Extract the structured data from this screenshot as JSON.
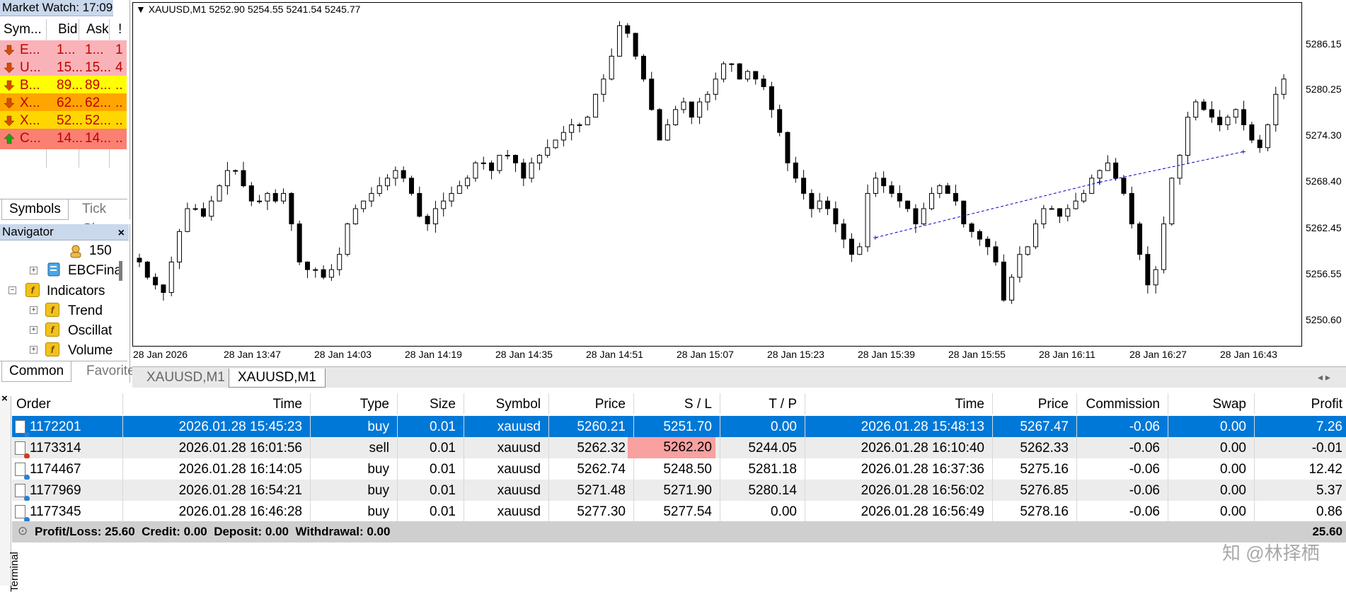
{
  "market_watch": {
    "title": "Market Watch: 17:09",
    "columns": [
      "Sym...",
      "Bid",
      "Ask",
      "!"
    ],
    "rows": [
      {
        "symbol": "E...",
        "bid": "1...",
        "ask": "1...",
        "spread": "1",
        "direction": "down",
        "bg": "#f9b3b8"
      },
      {
        "symbol": "U...",
        "bid": "15...",
        "ask": "15...",
        "spread": "4",
        "direction": "down",
        "bg": "#f9b3b8"
      },
      {
        "symbol": "B...",
        "bid": "89...",
        "ask": "89...",
        "spread": "..",
        "direction": "down",
        "bg": "#ffff00"
      },
      {
        "symbol": "X...",
        "bid": "62...",
        "ask": "62...",
        "spread": "..",
        "direction": "down",
        "bg": "#ffa500"
      },
      {
        "symbol": "X...",
        "bid": "52...",
        "ask": "52...",
        "spread": "..",
        "direction": "down",
        "bg": "#ffd700"
      },
      {
        "symbol": "C...",
        "bid": "14...",
        "ask": "14...",
        "spread": "..",
        "direction": "up",
        "bg": "#fa8072"
      }
    ],
    "tabs": [
      "Symbols",
      "Tick Cha"
    ]
  },
  "navigator": {
    "title": "Navigator",
    "items": [
      {
        "label": "150",
        "icon": "account-icon"
      },
      {
        "label": "EBCFina",
        "icon": "server-icon"
      },
      {
        "label": "Indicators",
        "icon": "indicator-icon"
      },
      {
        "label": "Trend",
        "icon": "indicator-icon"
      },
      {
        "label": "Oscillat",
        "icon": "indicator-icon"
      },
      {
        "label": "Volume",
        "icon": "indicator-icon"
      }
    ],
    "tabs": [
      "Common",
      "Favorite"
    ]
  },
  "chart": {
    "info": "XAUUSD,M1  5252.90 5254.55 5241.54 5245.77",
    "y_ticks": [
      "5286.15",
      "5280.25",
      "5274.30",
      "5268.40",
      "5262.45",
      "5256.55",
      "5250.60"
    ],
    "x_ticks": [
      "28 Jan 2026",
      "28 Jan 13:47",
      "28 Jan 14:03",
      "28 Jan 14:19",
      "28 Jan 14:35",
      "28 Jan 14:51",
      "28 Jan 15:07",
      "28 Jan 15:23",
      "28 Jan 15:39",
      "28 Jan 15:55",
      "28 Jan 16:11",
      "28 Jan 16:27",
      "28 Jan 16:43"
    ],
    "tabs": [
      "XAUUSD,M1",
      "XAUUSD,M1"
    ]
  },
  "chart_data": {
    "type": "candlestick",
    "title": "XAUUSD,M1",
    "ylim": [
      5246,
      5291
    ],
    "close_series": [
      5257,
      5255,
      5254,
      5253,
      5257,
      5261,
      5264,
      5264,
      5263,
      5265,
      5267,
      5269,
      5269,
      5267,
      5265,
      5265,
      5266,
      5265,
      5266,
      5262,
      5257,
      5256,
      5256,
      5255,
      5256,
      5258,
      5262,
      5264,
      5265,
      5266,
      5267,
      5268,
      5269,
      5268,
      5266,
      5263,
      5262,
      5264,
      5265,
      5266,
      5267,
      5268,
      5270,
      5270,
      5269,
      5271,
      5271,
      5270,
      5268,
      5270,
      5271,
      5272,
      5273,
      5274,
      5275,
      5275,
      5276,
      5279,
      5281,
      5284,
      5288,
      5287,
      5284,
      5281,
      5277,
      5273,
      5275,
      5277,
      5278,
      5276,
      5278,
      5279,
      5281,
      5283,
      5283,
      5281,
      5282,
      5281,
      5280,
      5277,
      5274,
      5270,
      5268,
      5266,
      5264,
      5265,
      5264,
      5262,
      5260,
      5258,
      5259,
      5266,
      5268,
      5267,
      5266,
      5265,
      5264,
      5262,
      5264,
      5266,
      5267,
      5266,
      5265,
      5262,
      5261,
      5260,
      5259,
      5257,
      5252,
      5255,
      5258,
      5259,
      5262,
      5264,
      5264,
      5263,
      5264,
      5265,
      5266,
      5268,
      5269,
      5270,
      5268,
      5266,
      5262,
      5258,
      5254,
      5256,
      5262,
      5268,
      5271,
      5276,
      5278,
      5277,
      5276,
      5275,
      5276,
      5277,
      5275,
      5273,
      5272,
      5275,
      5279,
      5281
    ],
    "markers": [
      {
        "x_index": 92,
        "y": 5260.21,
        "kind": "entry"
      },
      {
        "x_index": 120,
        "y": 5267.47,
        "kind": "exit"
      },
      {
        "x_index": 138,
        "y": 5271.48,
        "kind": "entry"
      }
    ]
  },
  "terminal": {
    "side_label": "Terminal",
    "columns": [
      "Order",
      "Time",
      "Type",
      "Size",
      "Symbol",
      "Price",
      "S / L",
      "T / P",
      "Time",
      "Price",
      "Commission",
      "Swap",
      "Profit"
    ],
    "rows": [
      {
        "order": "1172201",
        "time": "2026.01.28 15:45:23",
        "type": "buy",
        "size": "0.01",
        "symbol": "xauusd",
        "price": "5260.21",
        "sl": "5251.70",
        "tp": "0.00",
        "time2": "2026.01.28 15:48:13",
        "price2": "5267.47",
        "commission": "-0.06",
        "swap": "0.00",
        "profit": "7.26",
        "status": "selected"
      },
      {
        "order": "1173314",
        "time": "2026.01.28 16:01:56",
        "type": "sell",
        "size": "0.01",
        "symbol": "xauusd",
        "price": "5262.32",
        "sl": "5262.20",
        "tp": "5244.05",
        "time2": "2026.01.28 16:10:40",
        "price2": "5262.33",
        "commission": "-0.06",
        "swap": "0.00",
        "profit": "-0.01",
        "status": "sl-hit"
      },
      {
        "order": "1174467",
        "time": "2026.01.28 16:14:05",
        "type": "buy",
        "size": "0.01",
        "symbol": "xauusd",
        "price": "5262.74",
        "sl": "5248.50",
        "tp": "5281.18",
        "time2": "2026.01.28 16:37:36",
        "price2": "5275.16",
        "commission": "-0.06",
        "swap": "0.00",
        "profit": "12.42",
        "status": "normal"
      },
      {
        "order": "1177969",
        "time": "2026.01.28 16:54:21",
        "type": "buy",
        "size": "0.01",
        "symbol": "xauusd",
        "price": "5271.48",
        "sl": "5271.90",
        "tp": "5280.14",
        "time2": "2026.01.28 16:56:02",
        "price2": "5276.85",
        "commission": "-0.06",
        "swap": "0.00",
        "profit": "5.37",
        "status": "normal"
      },
      {
        "order": "1177345",
        "time": "2026.01.28 16:46:28",
        "type": "buy",
        "size": "0.01",
        "symbol": "xauusd",
        "price": "5277.30",
        "sl": "5277.54",
        "tp": "0.00",
        "time2": "2026.01.28 16:56:49",
        "price2": "5278.16",
        "commission": "-0.06",
        "swap": "0.00",
        "profit": "0.86",
        "status": "normal"
      }
    ],
    "summary": "Profit/Loss: 25.60  Credit: 0.00  Deposit: 0.00  Withdrawal: 0.00",
    "summary_total": "25.60"
  },
  "watermark": "知 @林择栖",
  "colors": {
    "selection": "#0078d7",
    "sl_highlight": "#f9a0a0",
    "bull_candle": "#ffffff",
    "bear_candle": "#000000",
    "trade_line": "#0000cc"
  }
}
